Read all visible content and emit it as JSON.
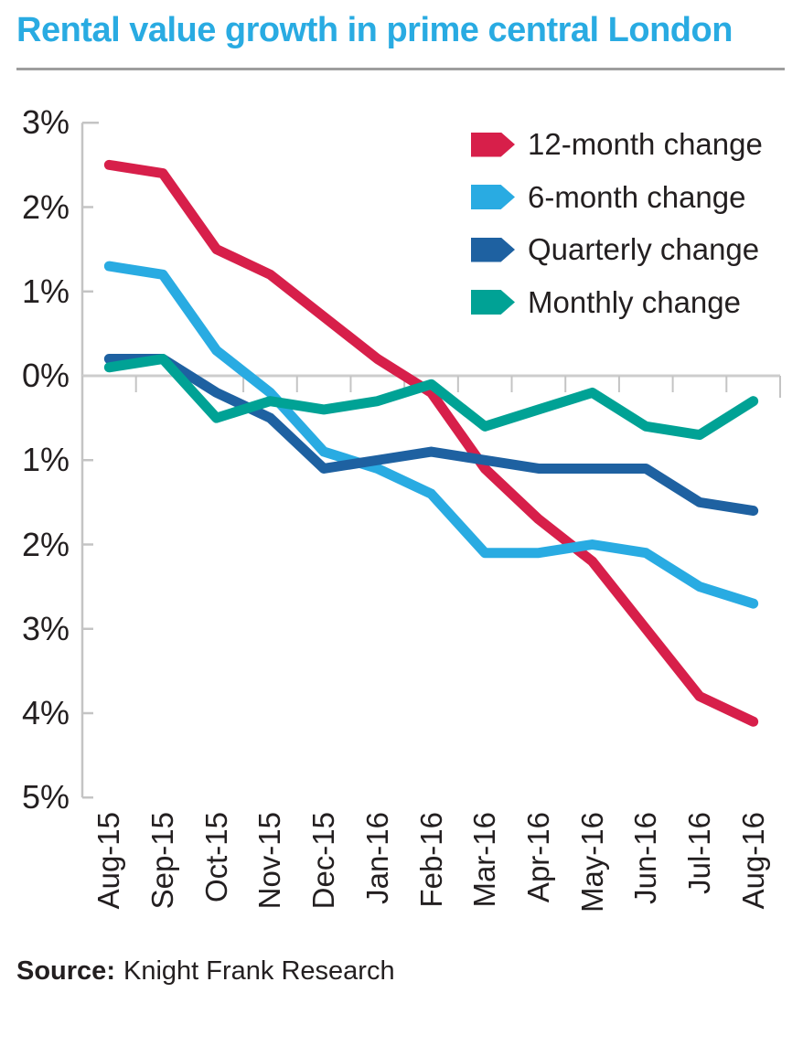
{
  "title": "Rental value growth in prime central London",
  "source": {
    "label": "Source:",
    "text": "Knight Frank Research"
  },
  "colors": {
    "title": "#29abe2",
    "axis": "#c4c4c4",
    "zero_line": "#cdcdcd",
    "text": "#231f20",
    "rule": "#9e9e9e"
  },
  "chart_data": {
    "type": "line",
    "title": "Rental value growth in prime central London",
    "xlabel": "",
    "ylabel": "",
    "categories": [
      "Aug-15",
      "Sep-15",
      "Oct-15",
      "Nov-15",
      "Dec-15",
      "Jan-16",
      "Feb-16",
      "Mar-16",
      "Apr-16",
      "May-16",
      "Jun-16",
      "Jul-16",
      "Aug-16"
    ],
    "series": [
      {
        "name": "12-month change",
        "color": "#d71f4a",
        "values": [
          2.5,
          2.4,
          1.5,
          1.2,
          0.7,
          0.2,
          -0.2,
          -1.1,
          -1.7,
          -2.2,
          -3.0,
          -3.8,
          -4.1
        ]
      },
      {
        "name": "6-month change",
        "color": "#29abe2",
        "values": [
          1.3,
          1.2,
          0.3,
          -0.2,
          -0.9,
          -1.1,
          -1.4,
          -2.1,
          -2.1,
          -2.0,
          -2.1,
          -2.5,
          -2.7
        ]
      },
      {
        "name": "Quarterly change",
        "color": "#1e61a1",
        "values": [
          0.2,
          0.2,
          -0.2,
          -0.5,
          -1.1,
          -1.0,
          -0.9,
          -1.0,
          -1.1,
          -1.1,
          -1.1,
          -1.5,
          -1.6
        ]
      },
      {
        "name": "Monthly change",
        "color": "#00a295",
        "values": [
          0.1,
          0.2,
          -0.5,
          -0.3,
          -0.4,
          -0.3,
          -0.1,
          -0.6,
          -0.4,
          -0.2,
          -0.6,
          -0.7,
          -0.3
        ]
      }
    ],
    "ytick_labels": [
      "3%",
      "2%",
      "1%",
      "0%",
      "1%",
      "2%",
      "3%",
      "4%",
      "5%"
    ],
    "ytick_values": [
      3,
      2,
      1,
      0,
      -1,
      -2,
      -3,
      -4,
      -5
    ],
    "ylim": [
      3,
      -5
    ],
    "unit": "%",
    "grid": "zero-line-only",
    "legend_position": "top-right"
  }
}
